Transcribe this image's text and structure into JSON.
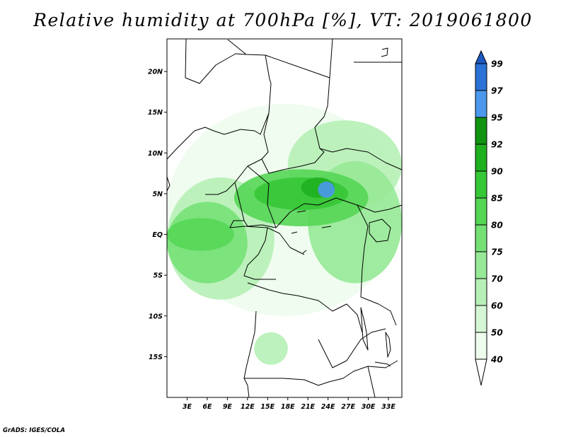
{
  "title": "Relative humidity at 700hPa [%], VT: 2019061800",
  "credit": "GrADS: IGES/COLA",
  "map": {
    "lon_range": [
      0,
      35
    ],
    "lat_range": [
      -20,
      24
    ],
    "lat_ticks": [
      {
        "value": 20,
        "label": "20N"
      },
      {
        "value": 15,
        "label": "15N"
      },
      {
        "value": 10,
        "label": "10N"
      },
      {
        "value": 5,
        "label": "5N"
      },
      {
        "value": 0,
        "label": "EQ"
      },
      {
        "value": -5,
        "label": "5S"
      },
      {
        "value": -10,
        "label": "10S"
      },
      {
        "value": -15,
        "label": "15S"
      }
    ],
    "lon_ticks": [
      {
        "value": 3,
        "label": "3E"
      },
      {
        "value": 6,
        "label": "6E"
      },
      {
        "value": 9,
        "label": "9E"
      },
      {
        "value": 12,
        "label": "12E"
      },
      {
        "value": 15,
        "label": "15E"
      },
      {
        "value": 18,
        "label": "18E"
      },
      {
        "value": 21,
        "label": "21E"
      },
      {
        "value": 24,
        "label": "24E"
      },
      {
        "value": 27,
        "label": "27E"
      },
      {
        "value": 30,
        "label": "30E"
      },
      {
        "value": 33,
        "label": "33E"
      }
    ],
    "humid_regions": [
      {
        "lon": [
          0,
          35
        ],
        "lat": [
          -10,
          16
        ],
        "level": 40
      },
      {
        "lon": [
          0,
          16
        ],
        "lat": [
          -8,
          7
        ],
        "level": 60
      },
      {
        "lon": [
          0,
          12
        ],
        "lat": [
          -6,
          4
        ],
        "level": 75
      },
      {
        "lon": [
          0,
          10
        ],
        "lat": [
          -2,
          2
        ],
        "level": 80
      },
      {
        "lon": [
          18,
          35
        ],
        "lat": [
          3,
          14
        ],
        "level": 60
      },
      {
        "lon": [
          21,
          35
        ],
        "lat": [
          -6,
          9
        ],
        "level": 70
      },
      {
        "lon": [
          10,
          30
        ],
        "lat": [
          1,
          8
        ],
        "level": 80
      },
      {
        "lon": [
          13,
          27
        ],
        "lat": [
          3,
          7
        ],
        "level": 85
      },
      {
        "lon": [
          20,
          25
        ],
        "lat": [
          4.5,
          7
        ],
        "level": 90
      },
      {
        "lon": [
          22.5,
          25
        ],
        "lat": [
          4.5,
          6.5
        ],
        "level": 95
      },
      {
        "lon": [
          13,
          18
        ],
        "lat": [
          -16,
          -12
        ],
        "level": 60
      }
    ]
  },
  "colorbar": {
    "levels": [
      "40",
      "50",
      "60",
      "70",
      "75",
      "80",
      "85",
      "90",
      "92",
      "95",
      "97",
      "99"
    ],
    "colors": [
      "#ffffff",
      "#edfced",
      "#d5f7d5",
      "#b6f0b6",
      "#96e996",
      "#75e175",
      "#55d655",
      "#36c736",
      "#1fb01f",
      "#109410",
      "#4b98ec",
      "#2b72d6",
      "#1d58c0"
    ]
  }
}
